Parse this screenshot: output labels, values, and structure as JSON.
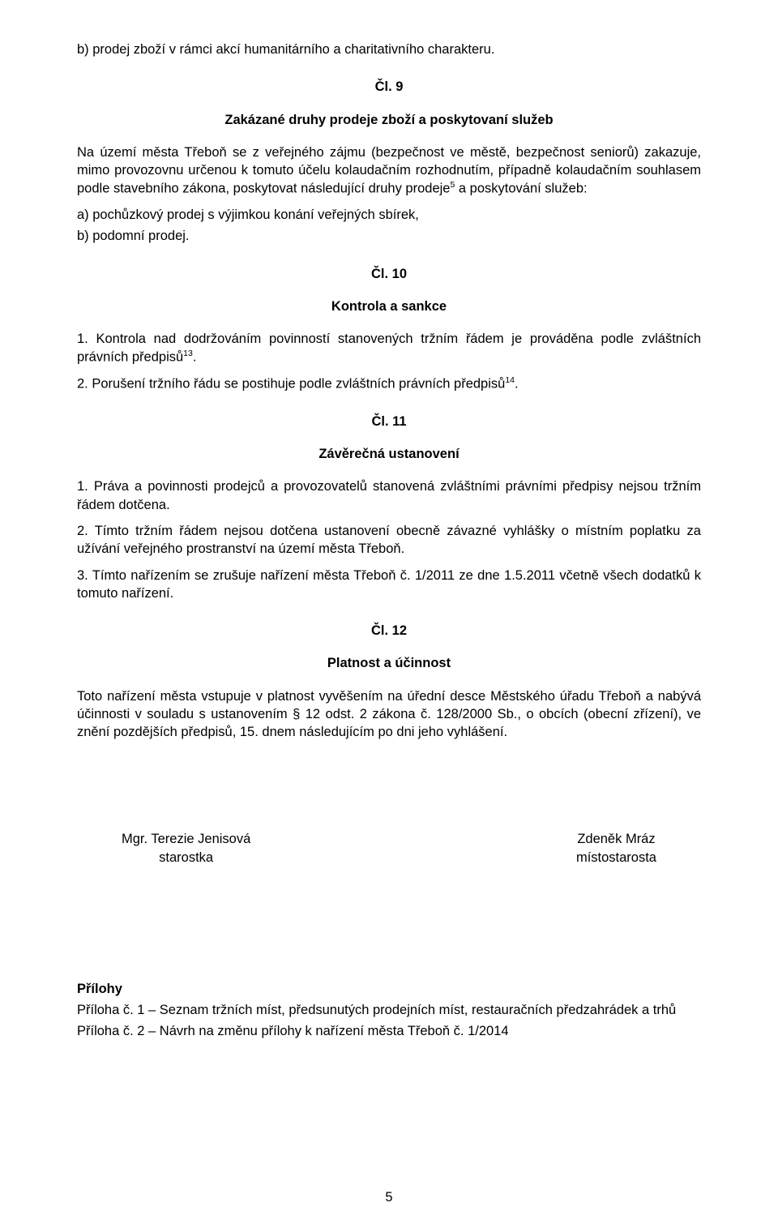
{
  "top_line": "b)  prodej zboží v rámci akcí humanitárního a charitativního charakteru.",
  "art9_title": "Čl. 9",
  "art9_heading": "Zakázané druhy prodeje zboží a poskytovaní služeb",
  "art9_body_1": "Na území města Třeboň se z veřejného zájmu (bezpečnost ve městě, bezpečnost seniorů) zakazuje, mimo provozovnu určenou k tomuto účelu kolaudačním rozhodnutím, případně kolaudačním souhlasem podle stavebního zákona, poskytovat následující druhy prodeje",
  "art9_sup1": "5",
  "art9_body_2": " a poskytování služeb:",
  "art9_item_a": "a) pochůzkový prodej s výjimkou konání veřejných sbírek,",
  "art9_item_b": "b) podomní prodej.",
  "art10_title": "Čl. 10",
  "art10_heading": "Kontrola a sankce",
  "art10_p1_a": "1.        Kontrola nad dodržováním povinností stanovených tržním řádem je prováděna podle zvláštních právních předpisů",
  "art10_sup1": "13",
  "art10_p1_b": ".",
  "art10_p2_a": "2.        Porušení tržního řádu se postihuje podle zvláštních právních předpisů",
  "art10_sup2": "14",
  "art10_p2_b": ".",
  "art11_title": "Čl. 11",
  "art11_heading": "Závěrečná ustanovení",
  "art11_p1": "1.        Práva a povinnosti prodejců a provozovatelů stanovená zvláštními právními předpisy nejsou tržním řádem dotčena.",
  "art11_p2": "2.      Tímto tržním řádem nejsou dotčena ustanovení obecně závazné vyhlášky o místním poplatku za užívání veřejného prostranství na území města Třeboň.",
  "art11_p3": "3.       Tímto nařízením se zrušuje nařízení města Třeboň č. 1/2011 ze dne 1.5.2011 včetně všech dodatků k tomuto nařízení.",
  "art12_title": "Čl. 12",
  "art12_heading": "Platnost a účinnost",
  "art12_body": "Toto nařízení města vstupuje v platnost vyvěšením na úřední desce Městského úřadu Třeboň a  nabývá účinnosti v souladu s ustanovením § 12 odst. 2 zákona č. 128/2000 Sb., o obcích (obecní zřízení), ve znění pozdějších předpisů, 15. dnem následujícím po dni jeho vyhlášení.",
  "sig_left_name": "Mgr. Terezie Jenisová",
  "sig_left_role": "starostka",
  "sig_right_name": "Zdeněk Mráz",
  "sig_right_role": "místostarosta",
  "attach_heading": "Přílohy",
  "attach_1": "Příloha č. 1 – Seznam tržních míst, předsunutých prodejních míst, restauračních předzahrádek a trhů",
  "attach_2": "Příloha č. 2 – Návrh na změnu přílohy k nařízení města Třeboň č. 1/2014",
  "page_number": "5"
}
